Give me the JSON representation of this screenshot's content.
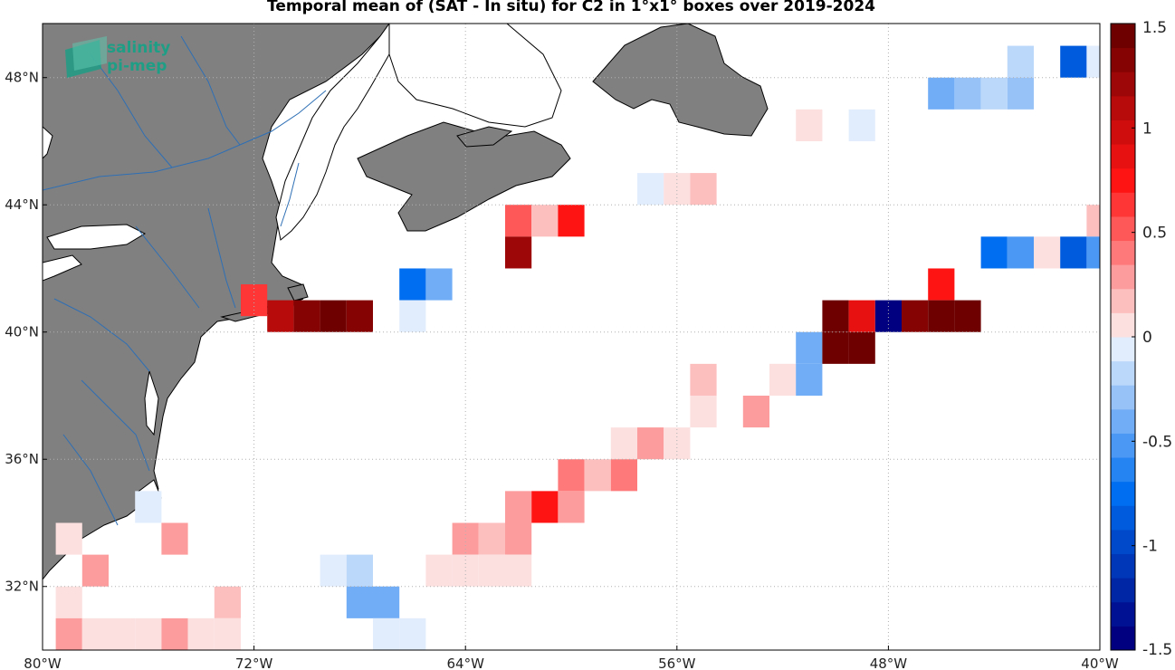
{
  "title": "Temporal mean of (SAT - In situ) for C2 in 1°x1° boxes over 2019-2024",
  "logo": {
    "line1": "salinity",
    "line2": "pi-mep",
    "icon": "pimep-logo-icon"
  },
  "axes": {
    "lon_ticks": [
      {
        "value": -80,
        "label": "80°W"
      },
      {
        "value": -72,
        "label": "72°W"
      },
      {
        "value": -64,
        "label": "64°W"
      },
      {
        "value": -56,
        "label": "56°W"
      },
      {
        "value": -48,
        "label": "48°W"
      },
      {
        "value": -40,
        "label": "40°W"
      }
    ],
    "lat_ticks": [
      {
        "value": 48,
        "label": "48°N"
      },
      {
        "value": 44,
        "label": "44°N"
      },
      {
        "value": 40,
        "label": "40°N"
      },
      {
        "value": 36,
        "label": "36°N"
      },
      {
        "value": 32,
        "label": "32°N"
      }
    ],
    "lon_range": [
      -80,
      -40
    ],
    "lat_range": [
      30,
      49.7
    ],
    "grid": "dotted"
  },
  "colors": {
    "land": "#808080",
    "ocean": "#ffffff",
    "coast": "#000000",
    "river": "#2e6fb5",
    "grid": "#b0b0b0"
  },
  "colorbar": {
    "range": [
      -1.5,
      1.5
    ],
    "levels": 26,
    "labels": [
      {
        "value": 1.5,
        "label": "1.5"
      },
      {
        "value": 1,
        "label": "1"
      },
      {
        "value": 0.5,
        "label": "0.5"
      },
      {
        "value": 0,
        "label": "0"
      },
      {
        "value": -0.5,
        "label": "-0.5"
      },
      {
        "value": -1,
        "label": "-1"
      },
      {
        "value": -1.5,
        "label": "-1.5"
      }
    ]
  },
  "chart_data": {
    "type": "heatmap",
    "title": "Temporal mean of (SAT - In situ) for C2 in 1°x1° boxes over 2019-2024",
    "xlabel": "",
    "ylabel": "",
    "xlim": [
      -80,
      -40
    ],
    "ylim": [
      30,
      49.7
    ],
    "cells": [
      {
        "lon": -43,
        "lat": 48.5,
        "value": -0.2
      },
      {
        "lon": -41,
        "lat": 48.5,
        "value": -0.9
      },
      {
        "lon": -40,
        "lat": 48.5,
        "value": -0.1
      },
      {
        "lon": -46,
        "lat": 47.5,
        "value": -0.4
      },
      {
        "lon": -45,
        "lat": 47.5,
        "value": -0.3
      },
      {
        "lon": -44,
        "lat": 47.5,
        "value": -0.2
      },
      {
        "lon": -43,
        "lat": 47.5,
        "value": -0.3
      },
      {
        "lon": -51,
        "lat": 46.5,
        "value": 0.1
      },
      {
        "lon": -49,
        "lat": 46.5,
        "value": -0.1
      },
      {
        "lon": -57,
        "lat": 44.5,
        "value": -0.1
      },
      {
        "lon": -56,
        "lat": 44.5,
        "value": 0.1
      },
      {
        "lon": -55,
        "lat": 44.5,
        "value": 0.2
      },
      {
        "lon": -62,
        "lat": 43.5,
        "value": 0.5
      },
      {
        "lon": -61,
        "lat": 43.5,
        "value": 0.2
      },
      {
        "lon": -60,
        "lat": 43.5,
        "value": 0.8
      },
      {
        "lon": -40,
        "lat": 43.5,
        "value": 0.2
      },
      {
        "lon": -62,
        "lat": 42.5,
        "value": 1.2
      },
      {
        "lon": -44,
        "lat": 42.5,
        "value": -0.7
      },
      {
        "lon": -43,
        "lat": 42.5,
        "value": -0.5
      },
      {
        "lon": -42,
        "lat": 42.5,
        "value": 0.1
      },
      {
        "lon": -41,
        "lat": 42.5,
        "value": -0.9
      },
      {
        "lon": -40,
        "lat": 42.5,
        "value": -0.5
      },
      {
        "lon": -66,
        "lat": 41.5,
        "value": -0.7
      },
      {
        "lon": -65,
        "lat": 41.5,
        "value": -0.4
      },
      {
        "lon": -46,
        "lat": 41.5,
        "value": 0.8
      },
      {
        "lon": -72,
        "lat": 41,
        "value": 0.6
      },
      {
        "lon": -71,
        "lat": 40.5,
        "value": 1.1
      },
      {
        "lon": -70,
        "lat": 40.5,
        "value": 1.3
      },
      {
        "lon": -69,
        "lat": 40.5,
        "value": 1.4
      },
      {
        "lon": -68,
        "lat": 40.5,
        "value": 1.3
      },
      {
        "lon": -66,
        "lat": 40.5,
        "value": -0.1
      },
      {
        "lon": -50,
        "lat": 40.5,
        "value": 1.5
      },
      {
        "lon": -49,
        "lat": 40.5,
        "value": 0.9
      },
      {
        "lon": -48,
        "lat": 40.5,
        "value": -1.5
      },
      {
        "lon": -47,
        "lat": 40.5,
        "value": 1.3
      },
      {
        "lon": -46,
        "lat": 40.5,
        "value": 1.4
      },
      {
        "lon": -45,
        "lat": 40.5,
        "value": 1.4
      },
      {
        "lon": -51,
        "lat": 39.5,
        "value": -0.4
      },
      {
        "lon": -50,
        "lat": 39.5,
        "value": 1.4
      },
      {
        "lon": -49,
        "lat": 39.5,
        "value": 1.4
      },
      {
        "lon": -55,
        "lat": 38.5,
        "value": 0.2
      },
      {
        "lon": -52,
        "lat": 38.5,
        "value": 0.1
      },
      {
        "lon": -51,
        "lat": 38.5,
        "value": -0.4
      },
      {
        "lon": -55,
        "lat": 37.5,
        "value": 0.1
      },
      {
        "lon": -53,
        "lat": 37.5,
        "value": 0.3
      },
      {
        "lon": -58,
        "lat": 36.5,
        "value": 0.1
      },
      {
        "lon": -57,
        "lat": 36.5,
        "value": 0.3
      },
      {
        "lon": -56,
        "lat": 36.5,
        "value": 0.1
      },
      {
        "lon": -60,
        "lat": 35.5,
        "value": 0.4
      },
      {
        "lon": -59,
        "lat": 35.5,
        "value": 0.2
      },
      {
        "lon": -58,
        "lat": 35.5,
        "value": 0.4
      },
      {
        "lon": -62,
        "lat": 34.5,
        "value": 0.3
      },
      {
        "lon": -61,
        "lat": 34.5,
        "value": 0.7
      },
      {
        "lon": -60,
        "lat": 34.5,
        "value": 0.3
      },
      {
        "lon": -76,
        "lat": 34.5,
        "value": -0.1
      },
      {
        "lon": -64,
        "lat": 33.5,
        "value": 0.3
      },
      {
        "lon": -63,
        "lat": 33.5,
        "value": 0.2
      },
      {
        "lon": -62,
        "lat": 33.5,
        "value": 0.3
      },
      {
        "lon": -75,
        "lat": 33.5,
        "value": 0.3
      },
      {
        "lon": -79,
        "lat": 33.5,
        "value": 0.1
      },
      {
        "lon": -65,
        "lat": 32.5,
        "value": 0.1
      },
      {
        "lon": -64,
        "lat": 32.5,
        "value": 0.1
      },
      {
        "lon": -63,
        "lat": 32.5,
        "value": 0.1
      },
      {
        "lon": -62,
        "lat": 32.5,
        "value": 0.1
      },
      {
        "lon": -69,
        "lat": 32.5,
        "value": -0.1
      },
      {
        "lon": -68,
        "lat": 32.5,
        "value": -0.2
      },
      {
        "lon": -78,
        "lat": 32.5,
        "value": 0.3
      },
      {
        "lon": -68,
        "lat": 31.5,
        "value": -0.4
      },
      {
        "lon": -67,
        "lat": 31.5,
        "value": -0.4
      },
      {
        "lon": -79,
        "lat": 31.5,
        "value": 0.1
      },
      {
        "lon": -73,
        "lat": 31.5,
        "value": 0.2
      },
      {
        "lon": -67,
        "lat": 30.5,
        "value": -0.1
      },
      {
        "lon": -66,
        "lat": 30.5,
        "value": -0.1
      },
      {
        "lon": -79,
        "lat": 30.5,
        "value": 0.3
      },
      {
        "lon": -78,
        "lat": 30.5,
        "value": 0.1
      },
      {
        "lon": -77,
        "lat": 30.5,
        "value": 0.1
      },
      {
        "lon": -76,
        "lat": 30.5,
        "value": 0.1
      },
      {
        "lon": -75,
        "lat": 30.5,
        "value": 0.3
      },
      {
        "lon": -74,
        "lat": 30.5,
        "value": 0.1
      },
      {
        "lon": -73,
        "lat": 30.5,
        "value": 0.1
      }
    ]
  }
}
